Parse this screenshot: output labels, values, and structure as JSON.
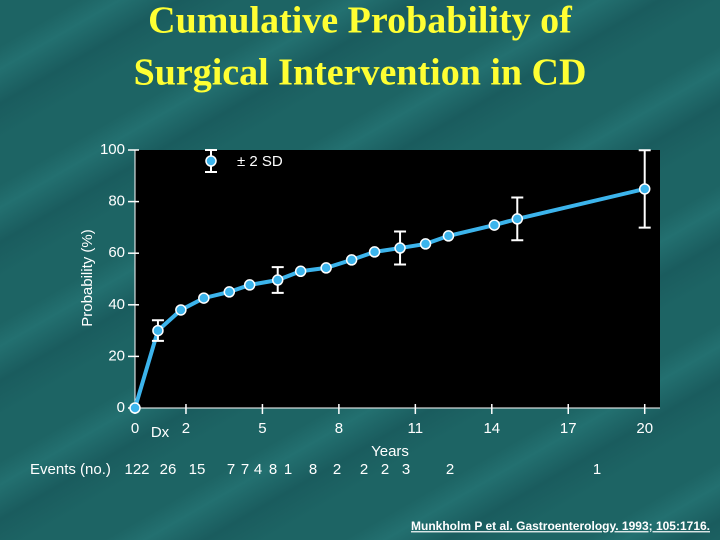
{
  "chart_data": {
    "type": "line",
    "title": [
      "Cumulative Probability of",
      "Surgical Intervention in CD"
    ],
    "y_label": "Probability (%)",
    "x_label": "Years",
    "x_annotation": "Dx",
    "legend_label": "± 2 SD",
    "xlim": [
      0,
      20.6
    ],
    "xticks": [
      0,
      2,
      5,
      8,
      11,
      14,
      17,
      20
    ],
    "ylim": [
      0,
      100
    ],
    "yticks": [
      0,
      20,
      40,
      60,
      80,
      100
    ],
    "grid": false,
    "series": [
      {
        "name": "± 2 SD",
        "color": "#3cb4ec",
        "x": [
          0,
          0.9,
          1.8,
          2.7,
          3.7,
          4.5,
          5.6,
          6.5,
          7.5,
          8.5,
          9.4,
          10.4,
          11.4,
          12.3,
          14.1,
          15.0,
          20.0
        ],
        "values": [
          0,
          30,
          38,
          42.6,
          45,
          47.7,
          49.6,
          53,
          54.3,
          57.4,
          60.5,
          62,
          63.6,
          66.7,
          70.9,
          73.3,
          84.9
        ],
        "errors": [
          null,
          4,
          null,
          null,
          null,
          null,
          5,
          null,
          null,
          null,
          null,
          6.4,
          null,
          null,
          null,
          8.3,
          15
        ]
      }
    ],
    "events": {
      "label": "Events (no.)",
      "values": [
        122,
        26,
        15,
        7,
        7,
        4,
        8,
        1,
        8,
        2,
        2,
        2,
        3,
        2,
        1
      ]
    },
    "citation": "Munkholm P et al. Gastroenterology. 1993; 105:1716."
  }
}
